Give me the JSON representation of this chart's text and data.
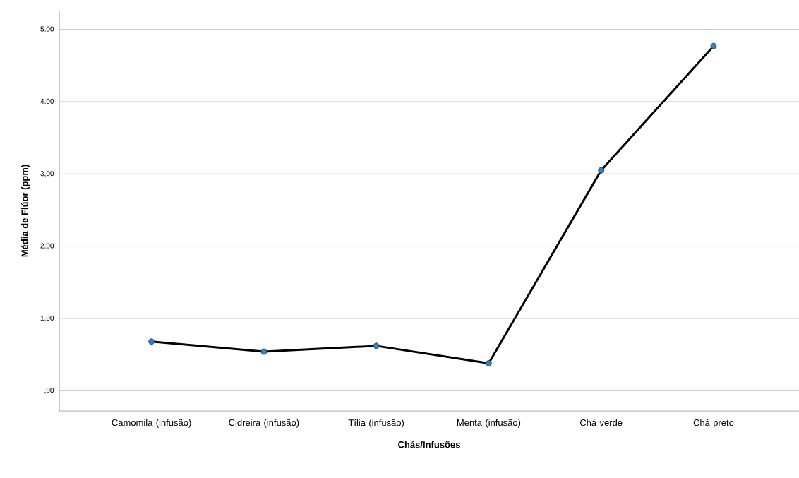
{
  "chart_data": {
    "type": "line",
    "xlabel": "Chás/Infusões",
    "ylabel": "Média de Flúor (ppm)",
    "categories": [
      "Camomila (infusão)",
      "Cidreira (infusão)",
      "Tília (infusão)",
      "Menta (infusão)",
      "Chá verde",
      "Chá preto"
    ],
    "values": [
      0.68,
      0.54,
      0.62,
      0.38,
      3.05,
      4.77
    ],
    "color": "#000000",
    "marker": "circle",
    "line_style": "solid",
    "grid": "y",
    "ylim": [
      -0.28,
      5.26
    ],
    "yticks": [
      {
        "value": 0,
        "label": ",00"
      },
      {
        "value": 1,
        "label": "1,00"
      },
      {
        "value": 2,
        "label": "2,00"
      },
      {
        "value": 3,
        "label": "3,00"
      },
      {
        "value": 4,
        "label": "4,00"
      },
      {
        "value": 5,
        "label": "5,00"
      }
    ]
  }
}
